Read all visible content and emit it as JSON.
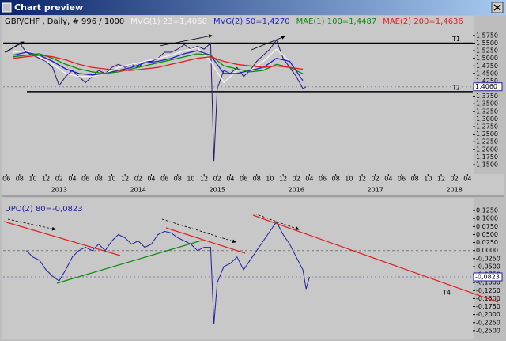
{
  "window": {
    "title": "Chart preview"
  },
  "chart_data": [
    {
      "type": "line",
      "title": "GBP/CHF , Daily, # 996 / 1000",
      "xlim": [
        4.5,
        75.8
      ],
      "ylim": [
        1.124,
        1.645
      ],
      "xticks": [
        {
          "value": 5,
          "label": "06"
        },
        {
          "value": 7,
          "label": "08"
        },
        {
          "value": 9,
          "label": "10"
        },
        {
          "value": 11,
          "label": "12"
        },
        {
          "value": 13,
          "label": "02"
        },
        {
          "value": 15,
          "label": "04"
        },
        {
          "value": 17,
          "label": "06"
        },
        {
          "value": 19,
          "label": "08"
        },
        {
          "value": 21,
          "label": "10"
        },
        {
          "value": 23,
          "label": "12"
        },
        {
          "value": 25,
          "label": "02"
        },
        {
          "value": 27,
          "label": "04"
        },
        {
          "value": 29,
          "label": "06"
        },
        {
          "value": 31,
          "label": "08"
        },
        {
          "value": 33,
          "label": "10"
        },
        {
          "value": 35,
          "label": "12"
        },
        {
          "value": 37,
          "label": "02"
        },
        {
          "value": 39,
          "label": "04"
        },
        {
          "value": 41,
          "label": "06"
        },
        {
          "value": 43,
          "label": "08"
        },
        {
          "value": 45,
          "label": "10"
        },
        {
          "value": 47,
          "label": "12"
        },
        {
          "value": 49,
          "label": "02"
        },
        {
          "value": 51,
          "label": "04"
        },
        {
          "value": 53,
          "label": "06"
        },
        {
          "value": 55,
          "label": "08"
        },
        {
          "value": 57,
          "label": "10"
        },
        {
          "value": 59,
          "label": "12"
        },
        {
          "value": 61,
          "label": "02"
        },
        {
          "value": 63,
          "label": "04"
        },
        {
          "value": 65,
          "label": "06"
        },
        {
          "value": 67,
          "label": "08"
        },
        {
          "value": 69,
          "label": "10"
        },
        {
          "value": 71,
          "label": "12"
        },
        {
          "value": 73,
          "label": "02"
        },
        {
          "value": 75,
          "label": "04"
        }
      ],
      "year_ticks": [
        {
          "value": 13,
          "label": "2013"
        },
        {
          "value": 25,
          "label": "2014"
        },
        {
          "value": 37,
          "label": "2015"
        },
        {
          "value": 49,
          "label": "2016"
        },
        {
          "value": 61,
          "label": "2017"
        },
        {
          "value": 73,
          "label": "2018"
        }
      ],
      "yticks": [
        {
          "value": 1.575,
          "label": "1,5750"
        },
        {
          "value": 1.55,
          "label": "1,5500"
        },
        {
          "value": 1.525,
          "label": "1,5250"
        },
        {
          "value": 1.5,
          "label": "1,5000"
        },
        {
          "value": 1.475,
          "label": "1,4750"
        },
        {
          "value": 1.45,
          "label": "1,4500"
        },
        {
          "value": 1.425,
          "label": "1,4250"
        },
        {
          "value": 1.4,
          "label": "1,4000"
        },
        {
          "value": 1.375,
          "label": "1,3750"
        },
        {
          "value": 1.35,
          "label": "1,3500"
        },
        {
          "value": 1.325,
          "label": "1,3250"
        },
        {
          "value": 1.3,
          "label": "1,3000"
        },
        {
          "value": 1.275,
          "label": "1,2750"
        },
        {
          "value": 1.25,
          "label": "1,2500"
        },
        {
          "value": 1.225,
          "label": "1,2250"
        },
        {
          "value": 1.2,
          "label": "1,2000"
        },
        {
          "value": 1.175,
          "label": "1,1750"
        },
        {
          "value": 1.15,
          "label": "1,1500"
        }
      ],
      "levels": [
        {
          "value": 1.55,
          "label": "T1"
        },
        {
          "value": 1.39,
          "label": "T2"
        }
      ],
      "last_value": {
        "value": 1.406,
        "label": "1,4060"
      },
      "series": [
        {
          "color": "#2a1a6e",
          "x": [
            5,
            6,
            7,
            8,
            9,
            10,
            11,
            12,
            13,
            14,
            15,
            16,
            17,
            18,
            19,
            20,
            21,
            22,
            23,
            24,
            25,
            26,
            27,
            28,
            29,
            30,
            31,
            32,
            33,
            34,
            35,
            36,
            36.5,
            37,
            38,
            39,
            40,
            41,
            42,
            43,
            44,
            45,
            46,
            47,
            48,
            49,
            50,
            50.5
          ],
          "values": [
            1.52,
            1.535,
            1.55,
            1.52,
            1.51,
            1.5,
            1.49,
            1.47,
            1.41,
            1.44,
            1.46,
            1.44,
            1.42,
            1.44,
            1.46,
            1.45,
            1.47,
            1.48,
            1.47,
            1.48,
            1.47,
            1.49,
            1.49,
            1.5,
            1.52,
            1.52,
            1.53,
            1.545,
            1.53,
            1.54,
            1.53,
            1.55,
            1.16,
            1.4,
            1.46,
            1.45,
            1.47,
            1.44,
            1.46,
            1.49,
            1.51,
            1.53,
            1.56,
            1.5,
            1.47,
            1.44,
            1.4,
            1.406
          ]
        },
        {
          "name": "MVG(1) 23=1,4060",
          "color": "#f4f4f4",
          "x": [
            6,
            8,
            10,
            12,
            14,
            16,
            18,
            20,
            22,
            24,
            26,
            28,
            30,
            32,
            34,
            36,
            38,
            40,
            42,
            44,
            46,
            48,
            50
          ],
          "values": [
            1.52,
            1.525,
            1.505,
            1.48,
            1.45,
            1.44,
            1.44,
            1.45,
            1.47,
            1.48,
            1.49,
            1.5,
            1.51,
            1.525,
            1.535,
            1.49,
            1.42,
            1.46,
            1.46,
            1.49,
            1.53,
            1.49,
            1.43
          ]
        },
        {
          "name": "MVG(2) 50=1,4270",
          "color": "#1f1fd0",
          "x": [
            6,
            8,
            10,
            12,
            14,
            16,
            18,
            20,
            22,
            24,
            26,
            28,
            30,
            32,
            34,
            36,
            38,
            40,
            42,
            44,
            46,
            48,
            50
          ],
          "values": [
            1.51,
            1.52,
            1.51,
            1.49,
            1.465,
            1.45,
            1.445,
            1.45,
            1.46,
            1.47,
            1.485,
            1.49,
            1.5,
            1.515,
            1.525,
            1.51,
            1.45,
            1.45,
            1.46,
            1.47,
            1.5,
            1.49,
            1.427
          ]
        },
        {
          "name": "MAE(1) 100=1,4487",
          "color": "#0a8a0a",
          "x": [
            6,
            8,
            10,
            12,
            14,
            16,
            18,
            20,
            22,
            24,
            26,
            28,
            30,
            32,
            34,
            36,
            38,
            40,
            42,
            44,
            46,
            48,
            50
          ],
          "values": [
            1.505,
            1.51,
            1.515,
            1.5,
            1.48,
            1.465,
            1.455,
            1.45,
            1.455,
            1.465,
            1.475,
            1.485,
            1.495,
            1.505,
            1.515,
            1.51,
            1.475,
            1.465,
            1.455,
            1.46,
            1.48,
            1.47,
            1.449
          ]
        },
        {
          "name": "MAE(2) 200=1,4636",
          "color": "#e02020",
          "x": [
            6,
            8,
            10,
            12,
            14,
            16,
            18,
            20,
            22,
            24,
            26,
            28,
            30,
            32,
            34,
            36,
            38,
            40,
            42,
            44,
            46,
            48,
            50
          ],
          "values": [
            1.5,
            1.505,
            1.51,
            1.505,
            1.495,
            1.48,
            1.47,
            1.465,
            1.46,
            1.46,
            1.465,
            1.47,
            1.48,
            1.49,
            1.5,
            1.505,
            1.49,
            1.48,
            1.475,
            1.47,
            1.475,
            1.47,
            1.464
          ]
        }
      ]
    },
    {
      "type": "line",
      "title": "DPO(2) 80=-0,0823",
      "xlim": [
        4.5,
        75.8
      ],
      "ylim": [
        -0.275,
        0.145
      ],
      "yticks": [
        {
          "value": 0.125,
          "label": "0,1250"
        },
        {
          "value": 0.1,
          "label": "0,1000"
        },
        {
          "value": 0.075,
          "label": "0,0750"
        },
        {
          "value": 0.05,
          "label": "0,0500"
        },
        {
          "value": 0.025,
          "label": "0,0250"
        },
        {
          "value": 0,
          "label": "0,0000"
        },
        {
          "value": -0.025,
          "label": "-0,0250"
        },
        {
          "value": -0.05,
          "label": "-0,0500"
        },
        {
          "value": -0.075,
          "label": "-0,0750"
        },
        {
          "value": -0.1,
          "label": "-0,1000"
        },
        {
          "value": -0.125,
          "label": "-0,1250"
        },
        {
          "value": -0.15,
          "label": "-0,1500"
        },
        {
          "value": -0.175,
          "label": "-0,1750"
        },
        {
          "value": -0.2,
          "label": "-0,2000"
        },
        {
          "value": -0.225,
          "label": "-0,2250"
        },
        {
          "value": -0.25,
          "label": "-0,2500"
        }
      ],
      "zero_line": true,
      "last_value": {
        "value": -0.0823,
        "label": "-0,0823"
      },
      "trend_labels": [
        "T4"
      ],
      "series": [
        {
          "color": "#2020a0",
          "x": [
            8,
            9,
            10,
            11,
            12,
            13,
            14,
            15,
            16,
            17,
            18,
            19,
            20,
            21,
            22,
            23,
            24,
            25,
            26,
            27,
            28,
            29,
            30,
            31,
            32,
            33,
            34,
            35,
            36,
            36.5,
            37,
            38,
            39,
            40,
            41,
            42,
            43,
            44,
            45,
            46,
            47,
            48,
            49,
            50,
            50.5,
            51
          ],
          "values": [
            0,
            -0.02,
            -0.03,
            -0.06,
            -0.08,
            -0.095,
            -0.06,
            -0.02,
            0,
            0.01,
            0,
            0.02,
            0,
            0.03,
            0.05,
            0.04,
            0.02,
            0.03,
            0.01,
            0.02,
            0.05,
            0.06,
            0.055,
            0.04,
            0.03,
            0.02,
            0,
            0.01,
            0.01,
            -0.23,
            -0.1,
            -0.05,
            -0.04,
            -0.02,
            -0.06,
            -0.03,
            0,
            0.03,
            0.06,
            0.09,
            0.05,
            0.02,
            -0.02,
            -0.06,
            -0.12,
            -0.0823
          ]
        }
      ]
    }
  ]
}
